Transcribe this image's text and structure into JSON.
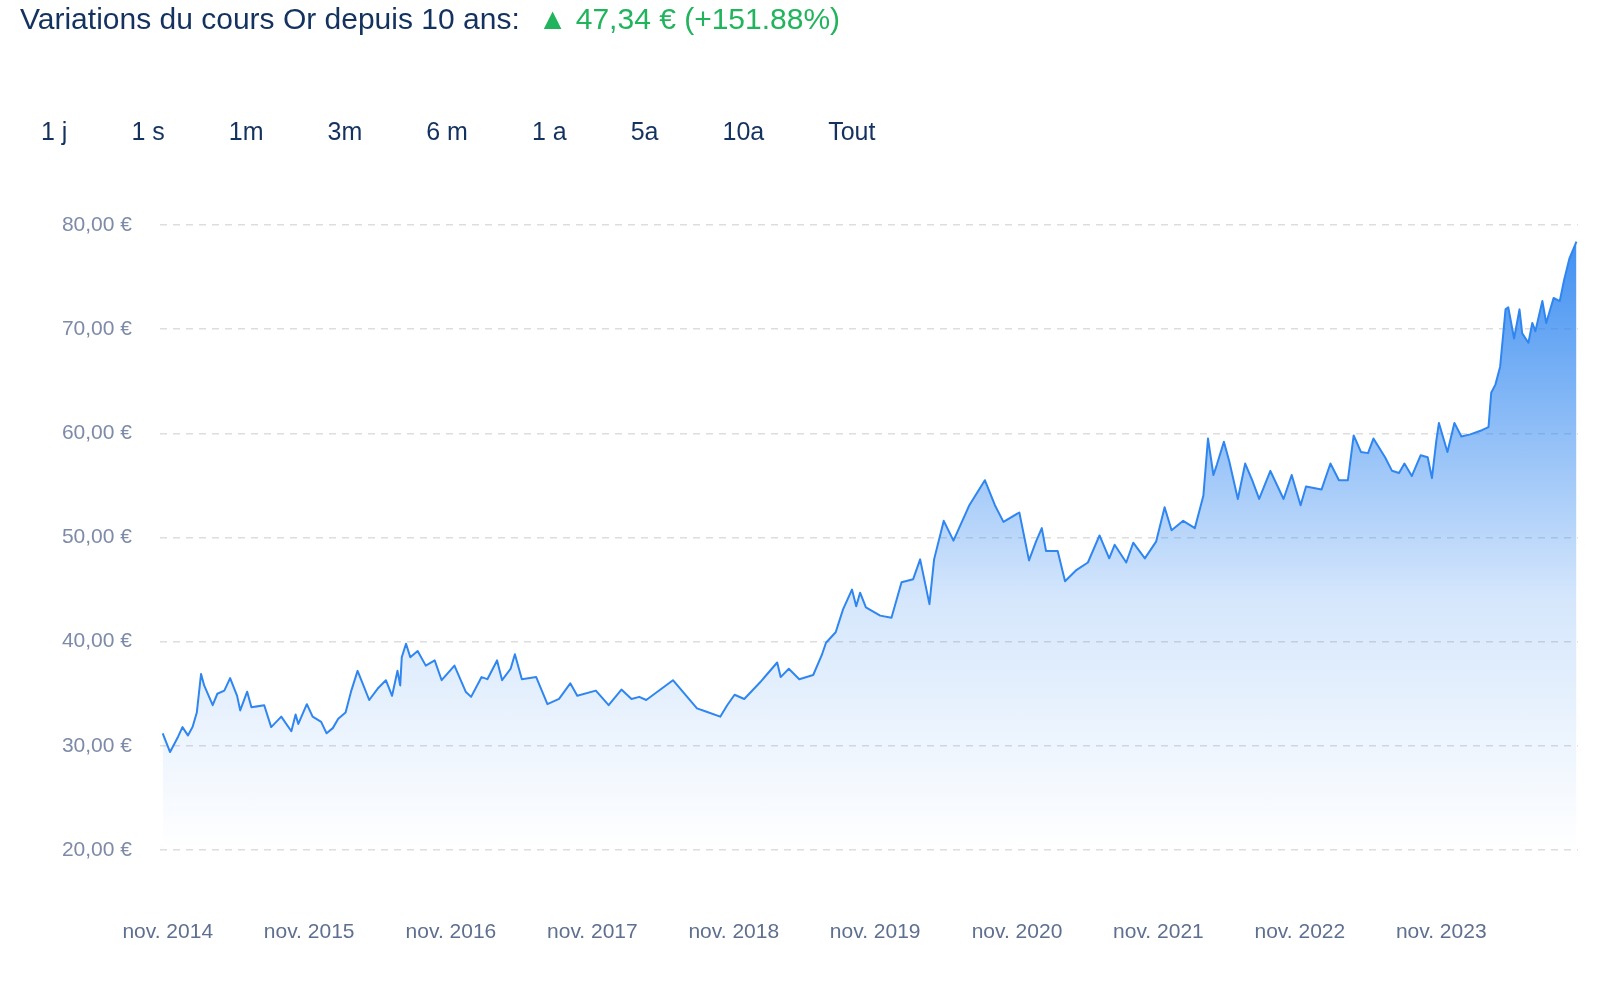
{
  "chart_data": {
    "type": "area",
    "title": "Variations du cours Or depuis 10 ans:",
    "subtitle": "▲ 47,34 €  (+151.88%)",
    "annotations": [
      "1 j",
      "1 s",
      "1m",
      "3m",
      "6 m",
      "1 a",
      "5a",
      "10a",
      "Tout"
    ],
    "series": [
      {
        "color": "#2f86f0",
        "x": [
          "2014-10-19",
          "2014-11-07",
          "2014-11-28",
          "2014-12-09",
          "2014-12-23",
          "2015-01-04",
          "2015-01-15",
          "2015-01-26",
          "2015-02-03",
          "2015-02-25",
          "2015-03-09",
          "2015-03-27",
          "2015-04-11",
          "2015-04-29",
          "2015-05-07",
          "2015-05-25",
          "2015-06-05",
          "2015-07-08",
          "2015-07-26",
          "2015-08-21",
          "2015-09-16",
          "2015-09-27",
          "2015-10-04",
          "2015-10-26",
          "2015-11-10",
          "2015-12-02",
          "2015-12-16",
          "2016-01-01",
          "2016-01-15",
          "2016-02-03",
          "2016-02-17",
          "2016-03-05",
          "2016-03-20",
          "2016-04-04",
          "2016-04-26",
          "2016-05-17",
          "2016-06-02",
          "2016-06-16",
          "2016-06-23",
          "2016-06-27",
          "2016-07-08",
          "2016-07-19",
          "2016-08-07",
          "2016-08-28",
          "2016-09-20",
          "2016-10-08",
          "2016-11-10",
          "2016-12-09",
          "2016-12-23",
          "2017-01-19",
          "2017-02-03",
          "2017-02-28",
          "2017-03-13",
          "2017-04-04",
          "2017-04-15",
          "2017-05-03",
          "2017-06-09",
          "2017-07-08",
          "2017-08-07",
          "2017-09-05",
          "2017-09-23",
          "2017-11-10",
          "2017-12-13",
          "2018-01-15",
          "2018-02-10",
          "2018-03-02",
          "2018-03-20",
          "2018-05-28",
          "2018-06-20",
          "2018-07-29",
          "2018-08-21",
          "2018-09-27",
          "2018-10-15",
          "2018-11-03",
          "2018-11-28",
          "2019-01-08",
          "2019-02-21",
          "2019-03-02",
          "2019-03-23",
          "2019-04-19",
          "2019-05-25",
          "2019-06-16",
          "2019-06-27",
          "2019-07-22",
          "2019-08-10",
          "2019-09-02",
          "2019-09-13",
          "2019-09-23",
          "2019-10-08",
          "2019-11-14",
          "2019-12-13",
          "2020-01-08",
          "2020-02-07",
          "2020-02-25",
          "2020-03-20",
          "2020-04-01",
          "2020-04-26",
          "2020-05-21",
          "2020-07-01",
          "2020-08-10",
          "2020-09-05",
          "2020-09-27",
          "2020-11-07",
          "2020-12-02",
          "2020-12-20",
          "2021-01-04",
          "2021-01-15",
          "2021-02-14",
          "2021-03-05",
          "2021-04-04",
          "2021-05-03",
          "2021-06-02",
          "2021-06-27",
          "2021-07-11",
          "2021-08-10",
          "2021-08-28",
          "2021-09-27",
          "2021-10-26",
          "2021-11-17",
          "2021-12-05",
          "2022-01-04",
          "2022-02-03",
          "2022-02-25",
          "2022-03-09",
          "2022-03-23",
          "2022-04-01",
          "2022-04-19",
          "2022-05-03",
          "2022-05-25",
          "2022-06-13",
          "2022-07-01",
          "2022-07-19",
          "2022-08-17",
          "2022-09-20",
          "2022-10-11",
          "2022-11-03",
          "2022-11-17",
          "2022-12-27",
          "2023-01-19",
          "2023-02-10",
          "2023-03-05",
          "2023-03-20",
          "2023-04-08",
          "2023-04-26",
          "2023-05-10",
          "2023-06-09",
          "2023-06-27",
          "2023-07-15",
          "2023-07-29",
          "2023-08-17",
          "2023-09-09",
          "2023-09-27",
          "2023-10-08",
          "2023-10-19",
          "2023-10-26",
          "2023-11-17",
          "2023-12-05",
          "2023-12-23",
          "2024-01-15",
          "2024-02-14",
          "2024-03-02",
          "2024-03-09",
          "2024-03-20",
          "2024-04-01",
          "2024-04-15",
          "2024-04-22",
          "2024-05-07",
          "2024-05-21",
          "2024-05-28",
          "2024-06-13",
          "2024-06-23",
          "2024-07-01",
          "2024-07-19",
          "2024-07-29",
          "2024-08-17",
          "2024-09-02",
          "2024-09-13",
          "2024-09-27",
          "2024-10-15"
        ],
        "values": [
          31.2,
          29.4,
          30.9,
          31.8,
          31.0,
          31.8,
          33.2,
          36.9,
          35.8,
          33.9,
          35.0,
          35.3,
          36.5,
          34.8,
          33.4,
          35.2,
          33.7,
          33.9,
          31.8,
          32.8,
          31.4,
          33.0,
          32.1,
          34.0,
          32.8,
          32.3,
          31.2,
          31.7,
          32.6,
          33.2,
          35.2,
          37.2,
          35.8,
          34.4,
          35.5,
          36.3,
          34.8,
          37.2,
          35.8,
          38.5,
          39.8,
          38.5,
          39.1,
          37.7,
          38.2,
          36.3,
          37.7,
          35.2,
          34.7,
          36.6,
          36.4,
          38.2,
          36.3,
          37.4,
          38.8,
          36.4,
          36.6,
          34.0,
          34.5,
          36.0,
          34.8,
          35.3,
          33.9,
          35.4,
          34.5,
          34.7,
          34.4,
          36.3,
          35.3,
          33.6,
          33.3,
          32.8,
          33.9,
          34.9,
          34.5,
          36.1,
          38.0,
          36.6,
          37.4,
          36.4,
          36.8,
          38.7,
          39.9,
          40.9,
          43.1,
          45.0,
          43.4,
          44.7,
          43.3,
          42.5,
          42.3,
          45.7,
          46.0,
          47.9,
          43.6,
          47.9,
          51.6,
          49.7,
          53.1,
          55.5,
          53.1,
          51.5,
          52.4,
          47.8,
          49.6,
          50.9,
          48.7,
          48.7,
          45.8,
          46.9,
          47.6,
          50.2,
          48.0,
          49.3,
          47.6,
          49.5,
          48.0,
          49.6,
          52.9,
          50.7,
          51.6,
          50.9,
          54.0,
          59.5,
          56.0,
          57.0,
          59.2,
          57.3,
          53.7,
          57.1,
          55.5,
          53.7,
          56.4,
          53.7,
          56.0,
          53.1,
          54.9,
          54.6,
          57.1,
          55.5,
          55.5,
          59.8,
          58.2,
          58.1,
          59.5,
          57.7,
          56.4,
          56.2,
          57.1,
          55.9,
          57.9,
          57.7,
          55.7,
          59.2,
          61.0,
          58.2,
          61.0,
          59.7,
          59.9,
          60.3,
          60.6,
          63.9,
          64.7,
          66.4,
          71.9,
          72.1,
          69.1,
          71.9,
          69.6,
          68.7,
          70.6,
          69.8,
          72.7,
          70.6,
          73.0,
          72.7,
          74.7,
          76.8,
          78.4
        ]
      }
    ],
    "xlim": [
      "2014-10-12",
      "2024-10-19"
    ],
    "xticks": [
      {
        "value": "2014-11-01",
        "label": "nov. 2014"
      },
      {
        "value": "2015-11-01",
        "label": "nov. 2015"
      },
      {
        "value": "2016-11-01",
        "label": "nov. 2016"
      },
      {
        "value": "2017-11-01",
        "label": "nov. 2017"
      },
      {
        "value": "2018-11-01",
        "label": "nov. 2018"
      },
      {
        "value": "2019-11-01",
        "label": "nov. 2019"
      },
      {
        "value": "2020-11-01",
        "label": "nov. 2020"
      },
      {
        "value": "2021-11-01",
        "label": "nov. 2021"
      },
      {
        "value": "2022-11-01",
        "label": "nov. 2022"
      },
      {
        "value": "2023-11-01",
        "label": "nov. 2023"
      }
    ],
    "ylim": [
      20,
      80
    ],
    "yticks": [
      {
        "value": 20,
        "label": "20,00 €"
      },
      {
        "value": 30,
        "label": "30,00 €"
      },
      {
        "value": 40,
        "label": "40,00 €"
      },
      {
        "value": 50,
        "label": "50,00 €"
      },
      {
        "value": 60,
        "label": "60,00 €"
      },
      {
        "value": 70,
        "label": "70,00 €"
      },
      {
        "value": 80,
        "label": "80,00 €"
      }
    ],
    "grid": "y",
    "line_style": "solid",
    "legend": false
  }
}
